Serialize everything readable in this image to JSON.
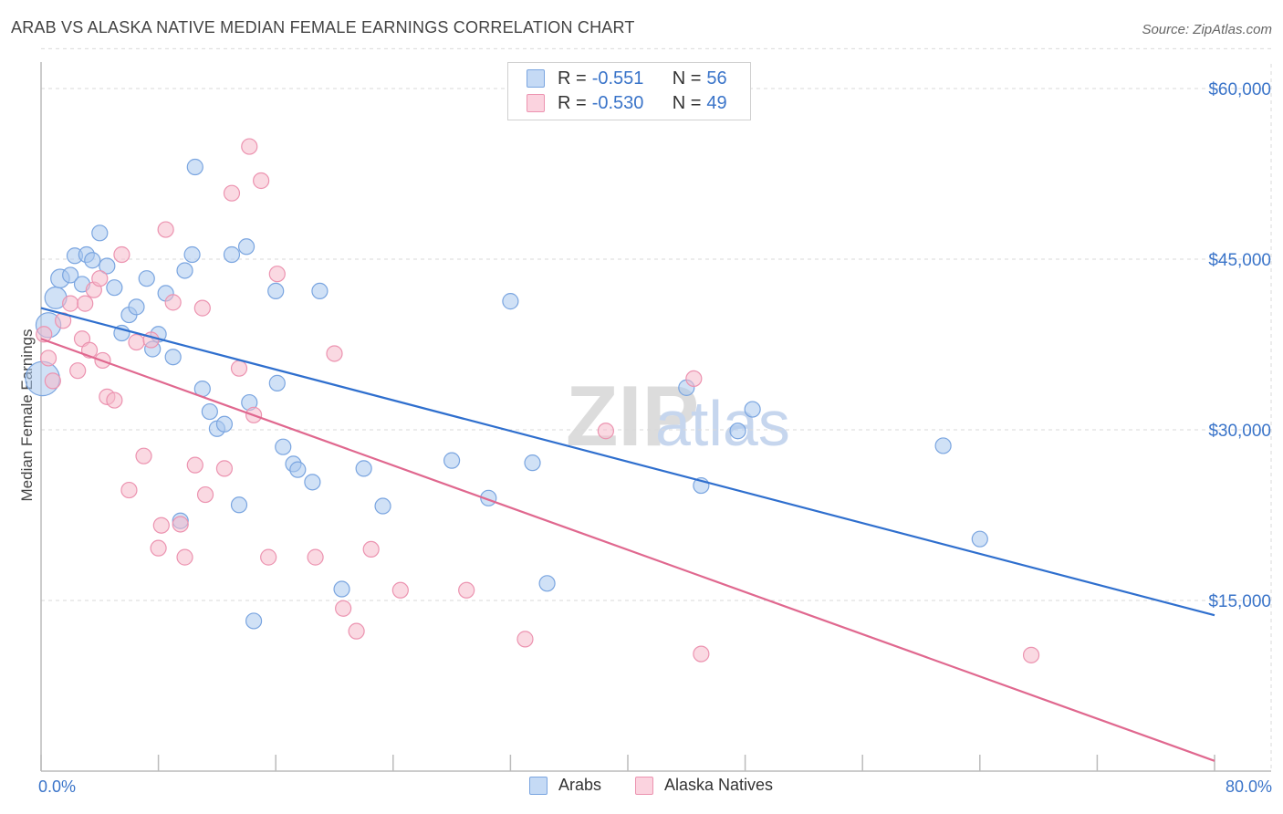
{
  "header": {
    "title": "ARAB VS ALASKA NATIVE MEDIAN FEMALE EARNINGS CORRELATION CHART",
    "source": "Source: ZipAtlas.com"
  },
  "watermark": {
    "zip": "ZIP",
    "atlas": "atlas"
  },
  "legend_top": {
    "rows": [
      {
        "r_label": "R = ",
        "r_value": "-0.551",
        "n_label": "N = ",
        "n_value": "56"
      },
      {
        "r_label": "R = ",
        "r_value": "-0.530",
        "n_label": "N = ",
        "n_value": "49"
      }
    ]
  },
  "colors": {
    "blue": "#3a74c9",
    "blue_fill": "#a9c8ef",
    "blue_line": "#2f6fce",
    "pink": "#e0688f",
    "pink_fill": "#f5b9cb",
    "grid": "#d9d9d9",
    "axis": "#bbbbbb"
  },
  "chart_data": {
    "type": "scatter",
    "title": "ARAB VS ALASKA NATIVE MEDIAN FEMALE EARNINGS CORRELATION CHART",
    "xlabel": "",
    "ylabel": "Median Female Earnings",
    "xlim": [
      0,
      80
    ],
    "ylim": [
      0,
      63500
    ],
    "x_tick_labels": [
      "0.0%",
      "80.0%"
    ],
    "y_ticks": [
      15000,
      30000,
      45000,
      60000
    ],
    "y_tick_labels": [
      "$15,000",
      "$30,000",
      "$45,000",
      "$60,000"
    ],
    "grid": true,
    "legend": [
      "Arabs",
      "Alaska Natives"
    ],
    "series": [
      {
        "name": "Arabs",
        "r": -0.551,
        "n": 56,
        "trend": {
          "x": [
            0,
            80
          ],
          "y": [
            40700,
            13700
          ]
        },
        "points": [
          [
            0.1,
            34500,
            22
          ],
          [
            0.5,
            39200,
            16
          ],
          [
            1.0,
            41600,
            14
          ],
          [
            1.3,
            43300,
            12
          ],
          [
            2.0,
            43600,
            10
          ],
          [
            2.3,
            45300,
            10
          ],
          [
            2.8,
            42800,
            10
          ],
          [
            3.1,
            45400,
            10
          ],
          [
            3.5,
            44900,
            10
          ],
          [
            4.0,
            47300,
            10
          ],
          [
            4.5,
            44400,
            10
          ],
          [
            5.0,
            42500,
            10
          ],
          [
            5.5,
            38500,
            10
          ],
          [
            6.0,
            40100,
            10
          ],
          [
            6.5,
            40800,
            10
          ],
          [
            7.2,
            43300,
            10
          ],
          [
            7.6,
            37100,
            10
          ],
          [
            8.0,
            38400,
            10
          ],
          [
            8.5,
            42000,
            10
          ],
          [
            9.0,
            36400,
            10
          ],
          [
            9.5,
            22000,
            10
          ],
          [
            9.8,
            44000,
            10
          ],
          [
            10.3,
            45400,
            10
          ],
          [
            10.5,
            53100,
            10
          ],
          [
            11.0,
            33600,
            10
          ],
          [
            11.5,
            31600,
            10
          ],
          [
            12.0,
            30100,
            10
          ],
          [
            12.5,
            30500,
            10
          ],
          [
            13.0,
            45400,
            10
          ],
          [
            13.5,
            23400,
            10
          ],
          [
            14.0,
            46100,
            10
          ],
          [
            14.2,
            32400,
            10
          ],
          [
            14.5,
            13200,
            10
          ],
          [
            16.0,
            42200,
            10
          ],
          [
            16.1,
            34100,
            10
          ],
          [
            16.5,
            28500,
            10
          ],
          [
            17.2,
            27000,
            10
          ],
          [
            17.5,
            26500,
            10
          ],
          [
            18.5,
            25400,
            10
          ],
          [
            19.0,
            42200,
            10
          ],
          [
            20.5,
            16000,
            10
          ],
          [
            22.0,
            26600,
            10
          ],
          [
            23.3,
            23300,
            10
          ],
          [
            28.0,
            27300,
            10
          ],
          [
            30.5,
            24000,
            10
          ],
          [
            32.0,
            41300,
            10
          ],
          [
            33.5,
            27100,
            10
          ],
          [
            34.5,
            16500,
            10
          ],
          [
            44.0,
            33700,
            10
          ],
          [
            45.0,
            25100,
            10
          ],
          [
            47.5,
            29900,
            10
          ],
          [
            48.5,
            31800,
            10
          ],
          [
            61.5,
            28600,
            10
          ],
          [
            64.0,
            20400,
            10
          ]
        ]
      },
      {
        "name": "Alaska Natives",
        "r": -0.53,
        "n": 49,
        "trend": {
          "x": [
            0,
            80
          ],
          "y": [
            38000,
            900
          ]
        },
        "points": [
          [
            0.2,
            38400,
            10
          ],
          [
            0.5,
            36300,
            10
          ],
          [
            0.8,
            34300,
            10
          ],
          [
            1.5,
            39600,
            10
          ],
          [
            2.0,
            41100,
            10
          ],
          [
            2.5,
            35200,
            10
          ],
          [
            2.8,
            38000,
            10
          ],
          [
            3.0,
            41100,
            10
          ],
          [
            3.3,
            37000,
            10
          ],
          [
            3.6,
            42300,
            10
          ],
          [
            4.0,
            43300,
            10
          ],
          [
            4.2,
            36100,
            10
          ],
          [
            4.5,
            32900,
            10
          ],
          [
            5.0,
            32600,
            10
          ],
          [
            5.5,
            45400,
            10
          ],
          [
            6.0,
            24700,
            10
          ],
          [
            6.5,
            37700,
            10
          ],
          [
            7.0,
            27700,
            10
          ],
          [
            7.5,
            37900,
            10
          ],
          [
            8.0,
            19600,
            10
          ],
          [
            8.2,
            21600,
            10
          ],
          [
            8.5,
            47600,
            10
          ],
          [
            9.0,
            41200,
            10
          ],
          [
            9.5,
            21700,
            10
          ],
          [
            9.8,
            18800,
            10
          ],
          [
            10.5,
            26900,
            10
          ],
          [
            11.0,
            40700,
            10
          ],
          [
            11.2,
            24300,
            10
          ],
          [
            12.5,
            26600,
            10
          ],
          [
            13.0,
            50800,
            10
          ],
          [
            13.5,
            35400,
            10
          ],
          [
            14.2,
            54900,
            10
          ],
          [
            14.5,
            31300,
            10
          ],
          [
            15.0,
            51900,
            10
          ],
          [
            15.5,
            18800,
            10
          ],
          [
            16.1,
            43700,
            10
          ],
          [
            18.7,
            18800,
            10
          ],
          [
            20.0,
            36700,
            10
          ],
          [
            20.6,
            14300,
            10
          ],
          [
            21.5,
            12300,
            10
          ],
          [
            22.5,
            19500,
            10
          ],
          [
            24.5,
            15900,
            10
          ],
          [
            29.0,
            15900,
            10
          ],
          [
            33.0,
            11600,
            10
          ],
          [
            38.5,
            29900,
            10
          ],
          [
            44.5,
            34500,
            10
          ],
          [
            45.0,
            10300,
            10
          ],
          [
            67.5,
            10200,
            10
          ]
        ]
      }
    ]
  }
}
